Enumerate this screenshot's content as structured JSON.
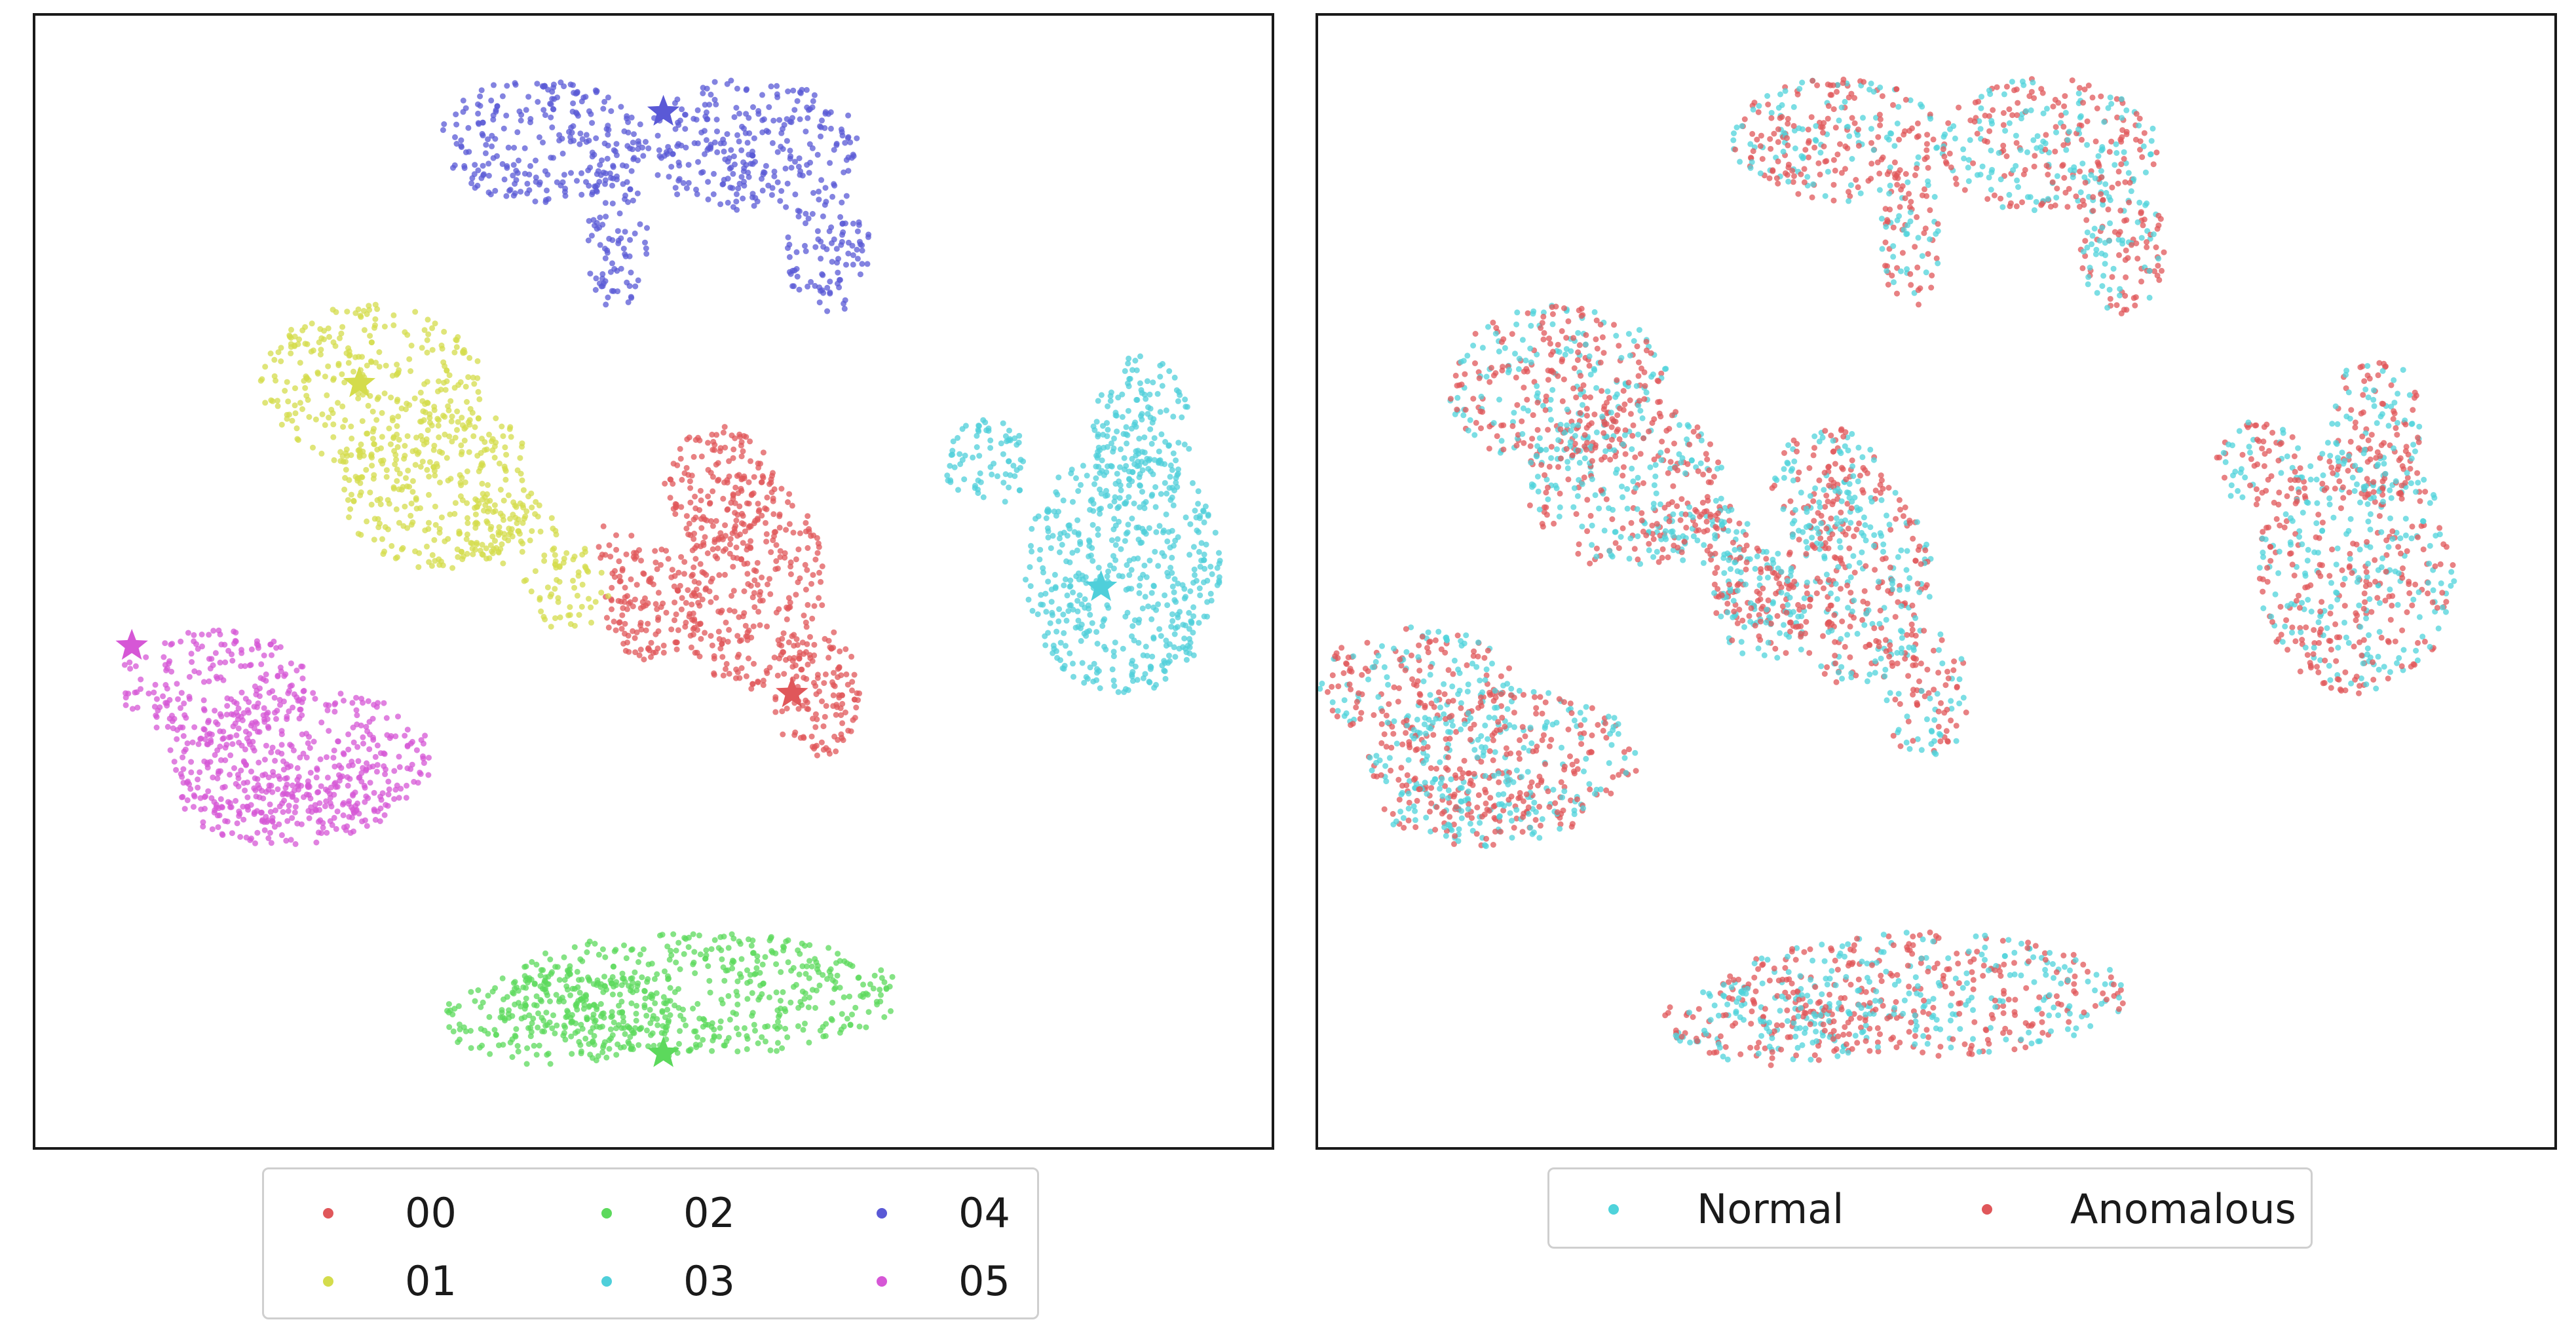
{
  "chart_data": [
    {
      "type": "scatter",
      "title": "",
      "xlabel": "",
      "ylabel": "",
      "grid": false,
      "axes_ticks": false,
      "legend_position": "bottom",
      "legend_columns": 3,
      "marker_size_note": "small dots, centroids shown as stars",
      "series": [
        {
          "name": "00",
          "color": "#e0575a",
          "centroid": [
            0.612,
            0.599
          ],
          "regions": [
            [
              0.553,
              0.418,
              0.045,
              0.055
            ],
            [
              0.578,
              0.5,
              0.06,
              0.095
            ],
            [
              0.632,
              0.598,
              0.035,
              0.06
            ],
            [
              0.5,
              0.52,
              0.04,
              0.05
            ],
            [
              0.47,
              0.465,
              0.02,
              0.02
            ]
          ],
          "count": 700
        },
        {
          "name": "01",
          "color": "#d4dc4c",
          "centroid": [
            0.262,
            0.325
          ],
          "regions": [
            [
              0.272,
              0.327,
              0.09,
              0.072
            ],
            [
              0.326,
              0.415,
              0.08,
              0.075
            ],
            [
              0.43,
              0.505,
              0.035,
              0.038
            ],
            [
              0.385,
              0.455,
              0.04,
              0.03
            ]
          ],
          "count": 700
        },
        {
          "name": "02",
          "color": "#5cd95c",
          "centroid": [
            0.508,
            0.917
          ],
          "regions": [
            [
              0.535,
              0.865,
              0.165,
              0.055
            ],
            [
              0.42,
              0.888,
              0.095,
              0.04
            ]
          ],
          "count": 700
        },
        {
          "name": "03",
          "color": "#4fcfda",
          "centroid": [
            0.862,
            0.505
          ],
          "regions": [
            [
              0.88,
              0.49,
              0.08,
              0.11
            ],
            [
              0.895,
              0.37,
              0.04,
              0.07
            ],
            [
              0.77,
              0.395,
              0.035,
              0.038
            ]
          ],
          "count": 700
        },
        {
          "name": "04",
          "color": "#5a59d6",
          "centroid": [
            0.508,
            0.085
          ],
          "regions": [
            [
              0.41,
              0.11,
              0.085,
              0.055
            ],
            [
              0.58,
              0.115,
              0.09,
              0.06
            ],
            [
              0.47,
              0.195,
              0.025,
              0.065
            ],
            [
              0.64,
              0.205,
              0.035,
              0.06
            ]
          ],
          "count": 700
        },
        {
          "name": "05",
          "color": "#d657d6",
          "centroid": [
            0.078,
            0.557
          ],
          "regions": [
            [
              0.145,
              0.59,
              0.08,
              0.05
            ],
            [
              0.215,
              0.655,
              0.11,
              0.06
            ],
            [
              0.2,
              0.7,
              0.085,
              0.035
            ]
          ],
          "count": 700
        }
      ]
    },
    {
      "type": "scatter",
      "title": "",
      "xlabel": "",
      "ylabel": "",
      "grid": false,
      "axes_ticks": false,
      "legend_position": "bottom",
      "legend_columns": 2,
      "series": [
        {
          "name": "Normal",
          "color": "#4fd3db",
          "count": 1900
        },
        {
          "name": "Anomalous",
          "color": "#e0575a",
          "count": 2300
        }
      ],
      "cluster_regions": [
        [
          0.412,
          0.418,
          0.045,
          0.055
        ],
        [
          0.437,
          0.5,
          0.06,
          0.095
        ],
        [
          0.492,
          0.598,
          0.035,
          0.06
        ],
        [
          0.36,
          0.52,
          0.04,
          0.05
        ],
        [
          0.33,
          0.465,
          0.02,
          0.02
        ],
        [
          0.195,
          0.327,
          0.09,
          0.072
        ],
        [
          0.249,
          0.415,
          0.08,
          0.075
        ],
        [
          0.353,
          0.505,
          0.035,
          0.038
        ],
        [
          0.308,
          0.455,
          0.04,
          0.03
        ],
        [
          0.49,
          0.865,
          0.165,
          0.055
        ],
        [
          0.375,
          0.888,
          0.095,
          0.04
        ],
        [
          0.84,
          0.49,
          0.08,
          0.11
        ],
        [
          0.855,
          0.37,
          0.04,
          0.07
        ],
        [
          0.76,
          0.395,
          0.035,
          0.038
        ],
        [
          0.42,
          0.11,
          0.085,
          0.055
        ],
        [
          0.59,
          0.115,
          0.09,
          0.06
        ],
        [
          0.48,
          0.195,
          0.025,
          0.065
        ],
        [
          0.65,
          0.205,
          0.035,
          0.06
        ],
        [
          0.08,
          0.59,
          0.08,
          0.05
        ],
        [
          0.15,
          0.655,
          0.11,
          0.06
        ],
        [
          0.135,
          0.7,
          0.085,
          0.035
        ]
      ]
    }
  ],
  "legend_left": {
    "items": [
      {
        "label": "00",
        "color": "#e0575a"
      },
      {
        "label": "02",
        "color": "#5cd95c"
      },
      {
        "label": "04",
        "color": "#5a59d6"
      },
      {
        "label": "01",
        "color": "#d4dc4c"
      },
      {
        "label": "03",
        "color": "#4fcfda"
      },
      {
        "label": "05",
        "color": "#d657d6"
      }
    ]
  },
  "legend_right": {
    "items": [
      {
        "label": "Normal",
        "color": "#4fd3db"
      },
      {
        "label": "Anomalous",
        "color": "#e0575a"
      }
    ]
  }
}
